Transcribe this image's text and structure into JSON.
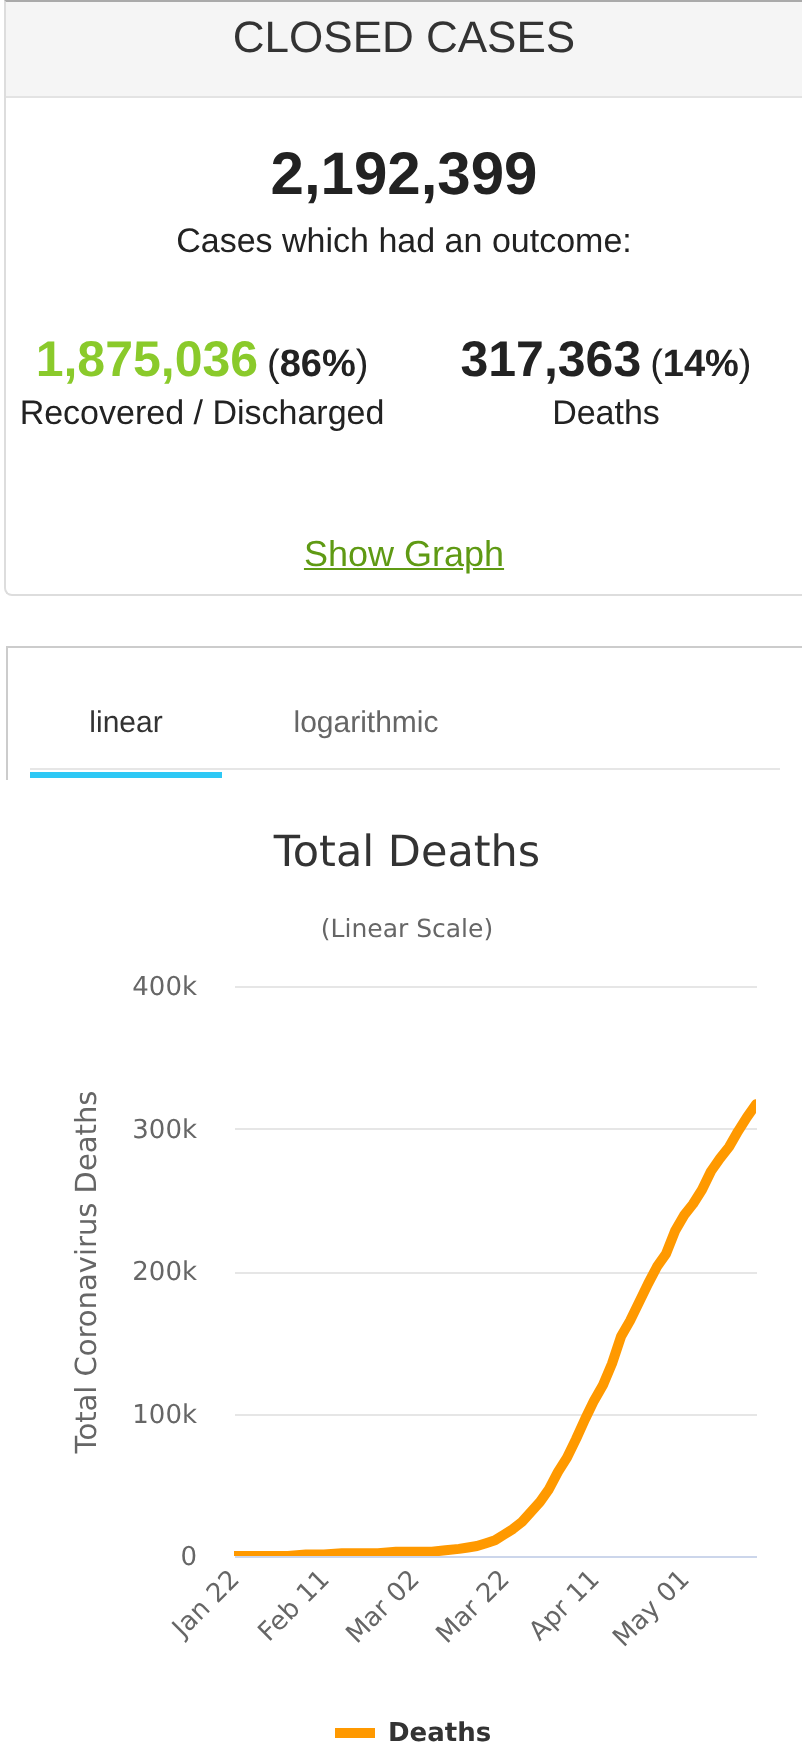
{
  "chart_data": [
    {
      "type": "other",
      "title": "CLOSED CASES",
      "annotations": [
        "2,192,399",
        "Cases which had an outcome:",
        "1,875,036",
        "(86%)",
        "Recovered / Discharged",
        "317,363",
        "(14%)",
        "Deaths",
        "Show Graph"
      ]
    },
    {
      "type": "line",
      "title": "Total Deaths",
      "subtitle": "(Linear Scale)",
      "ylabel": "Total Coronavirus Deaths",
      "annotations": [
        "linear",
        "logarithmic"
      ],
      "x": [
        "--01-22",
        "--01-26",
        "--01-30",
        "--02-03",
        "--02-07",
        "--02-11",
        "--02-15",
        "--02-19",
        "--02-23",
        "--02-27",
        "--03-02",
        "--03-06",
        "--03-09",
        "--03-12",
        "--03-14",
        "--03-16",
        "--03-18",
        "--03-20",
        "--03-22",
        "--03-24",
        "--03-26",
        "--03-28",
        "--03-30",
        "--04-01",
        "--04-03",
        "--04-05",
        "--04-07",
        "--04-09",
        "--04-11",
        "--04-13",
        "--04-15",
        "--04-17",
        "--04-19",
        "--04-21",
        "--04-23",
        "--04-25",
        "--04-27",
        "--04-29",
        "--05-01",
        "--05-03",
        "--05-05",
        "--05-07",
        "--05-09",
        "--05-11",
        "--05-13",
        "--05-15",
        "--05-17"
      ],
      "series": [
        {
          "name": "Deaths",
          "color": "#ff9900",
          "values": [
            0,
            0,
            0,
            0,
            1000,
            1000,
            2000,
            2000,
            2000,
            3000,
            3000,
            3000,
            4000,
            5000,
            6000,
            7000,
            9000,
            11000,
            15000,
            19000,
            24000,
            31000,
            38000,
            47000,
            59000,
            69000,
            82000,
            96000,
            109000,
            120000,
            135000,
            154000,
            165000,
            178000,
            191000,
            203000,
            212000,
            228000,
            239000,
            247000,
            257000,
            270000,
            279000,
            287000,
            298000,
            308000,
            317000
          ]
        }
      ],
      "xlim": [
        "--01-22",
        "--05-17"
      ],
      "xticks": [
        {
          "value": "--01-22",
          "label": "Jan 22"
        },
        {
          "value": "--02-11",
          "label": "Feb 11"
        },
        {
          "value": "--03-02",
          "label": "Mar 02"
        },
        {
          "value": "--03-22",
          "label": "Mar 22"
        },
        {
          "value": "--04-11",
          "label": "Apr 11"
        },
        {
          "value": "--05-01",
          "label": "May 01"
        }
      ],
      "ylim": [
        0,
        400000
      ],
      "yticks": [
        0,
        {
          "value": 100000,
          "label": "100k"
        },
        {
          "value": 200000,
          "label": "200k"
        },
        {
          "value": 300000,
          "label": "300k"
        },
        {
          "value": 400000,
          "label": "400k"
        }
      ],
      "grid": "y",
      "legend": "bottom"
    }
  ]
}
